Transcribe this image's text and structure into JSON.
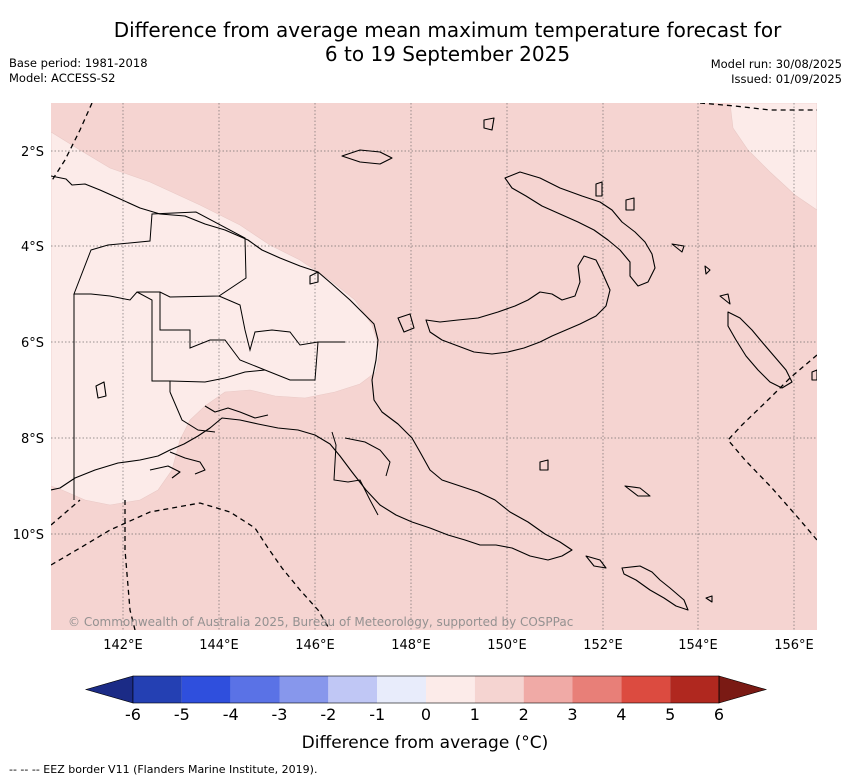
{
  "title_line1": "Difference from average mean maximum temperature forecast for",
  "title_line2": "6 to 19 September 2025",
  "base_period": "Base period: 1981-2018",
  "model": "Model: ACCESS-S2",
  "model_run": "Model run: 30/08/2025",
  "issued": "Issued: 01/09/2025",
  "copyright": "© Commonwealth of Australia 2025, Bureau of Meteorology, supported by COSPPac",
  "lat_labels": [
    "2°S",
    "4°S",
    "6°S",
    "8°S",
    "10°S"
  ],
  "lon_labels": [
    "142°E",
    "144°E",
    "146°E",
    "148°E",
    "150°E",
    "152°E",
    "154°E",
    "156°E"
  ],
  "colorbar": {
    "title": "Difference from average (°C)",
    "ticks": [
      "-6",
      "-5",
      "-4",
      "-3",
      "-2",
      "-1",
      "0",
      "1",
      "2",
      "3",
      "4",
      "5",
      "6"
    ],
    "colors": [
      "#1b2b86",
      "#2440b3",
      "#2f4fdd",
      "#5a72e6",
      "#8797ec",
      "#c0c7f5",
      "#e8ecfb",
      "#fcebe9",
      "#f5d4d1",
      "#f0aaa6",
      "#e87f78",
      "#dc4b40",
      "#b0281f",
      "#7a1a14"
    ]
  },
  "footnote": "--  --  -- EEZ border V11 (Flanders Marine Institute, 2019).",
  "map_colors": {
    "anomaly_1_to_2": "#f5d4d1",
    "anomaly_0_to_1": "#fcebe9",
    "coastline": "#000000"
  }
}
